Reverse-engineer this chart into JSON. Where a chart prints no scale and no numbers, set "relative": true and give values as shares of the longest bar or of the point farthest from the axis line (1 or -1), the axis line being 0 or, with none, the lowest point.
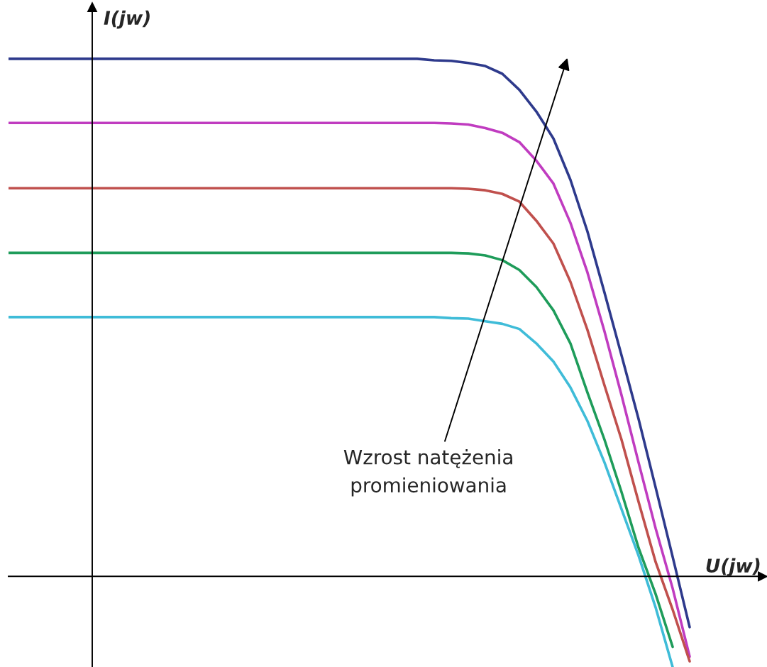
{
  "chart_data": {
    "type": "line",
    "relative": true,
    "xlabel": "U(jw)",
    "ylabel": "I(jw)",
    "categories": [
      null,
      null,
      null,
      null,
      null,
      null,
      null,
      null,
      null,
      null,
      null,
      null,
      null,
      null,
      null,
      null,
      null,
      null,
      null,
      null,
      null,
      null,
      null,
      null,
      null,
      null,
      null,
      null,
      null,
      null,
      null,
      null,
      null,
      null,
      null,
      null,
      null,
      null,
      null,
      null,
      null
    ],
    "series": [
      {
        "color": "#2e3a8c",
        "values": [
          1.0,
          1.0,
          1.0,
          1.0,
          1.0,
          1.0,
          1.0,
          1.0,
          1.0,
          1.0,
          1.0,
          1.0,
          1.0,
          1.0,
          1.0,
          1.0,
          1.0,
          1.0,
          1.0,
          1.0,
          1.0,
          1.0,
          1.0,
          1.0,
          1.0,
          0.997,
          0.996,
          0.992,
          0.986,
          0.971,
          0.94,
          0.898,
          0.846,
          0.766,
          0.666,
          0.548,
          0.427,
          0.304,
          0.172,
          0.038,
          -0.098
        ]
      },
      {
        "color": "#c03cc0",
        "values": [
          0.876,
          0.876,
          0.876,
          0.876,
          0.876,
          0.876,
          0.876,
          0.876,
          0.876,
          0.876,
          0.876,
          0.876,
          0.876,
          0.876,
          0.876,
          0.876,
          0.876,
          0.876,
          0.876,
          0.876,
          0.876,
          0.876,
          0.876,
          0.876,
          0.876,
          0.876,
          0.875,
          0.873,
          0.866,
          0.857,
          0.839,
          0.803,
          0.759,
          0.683,
          0.587,
          0.473,
          0.35,
          0.22,
          0.093,
          -0.023,
          -0.155
        ]
      },
      {
        "color": "#c0504d",
        "values": [
          0.75,
          0.75,
          0.75,
          0.75,
          0.75,
          0.75,
          0.75,
          0.75,
          0.75,
          0.75,
          0.75,
          0.75,
          0.75,
          0.75,
          0.75,
          0.75,
          0.75,
          0.75,
          0.75,
          0.75,
          0.75,
          0.75,
          0.75,
          0.75,
          0.75,
          0.75,
          0.75,
          0.749,
          0.746,
          0.739,
          0.724,
          0.687,
          0.643,
          0.569,
          0.476,
          0.369,
          0.264,
          0.144,
          0.028,
          -0.064,
          -0.164
        ]
      },
      {
        "color": "#1e9c5a",
        "values": [
          0.625,
          0.625,
          0.625,
          0.625,
          0.625,
          0.625,
          0.625,
          0.625,
          0.625,
          0.625,
          0.625,
          0.625,
          0.625,
          0.625,
          0.625,
          0.625,
          0.625,
          0.625,
          0.625,
          0.625,
          0.625,
          0.625,
          0.625,
          0.625,
          0.625,
          0.625,
          0.625,
          0.624,
          0.62,
          0.611,
          0.592,
          0.559,
          0.514,
          0.45,
          0.355,
          0.264,
          0.163,
          0.055,
          -0.034,
          -0.136,
          null
        ]
      },
      {
        "color": "#3fbcd8",
        "values": [
          0.501,
          0.501,
          0.501,
          0.501,
          0.501,
          0.501,
          0.501,
          0.501,
          0.501,
          0.501,
          0.501,
          0.501,
          0.501,
          0.501,
          0.501,
          0.501,
          0.501,
          0.501,
          0.501,
          0.501,
          0.501,
          0.501,
          0.501,
          0.501,
          0.501,
          0.501,
          0.499,
          0.498,
          0.493,
          0.488,
          0.478,
          0.45,
          0.415,
          0.365,
          0.3,
          0.22,
          0.13,
          0.04,
          -0.06,
          -0.175,
          null
        ]
      }
    ],
    "annotations": [
      "Wzrost natężenia\npromieniowania"
    ]
  }
}
